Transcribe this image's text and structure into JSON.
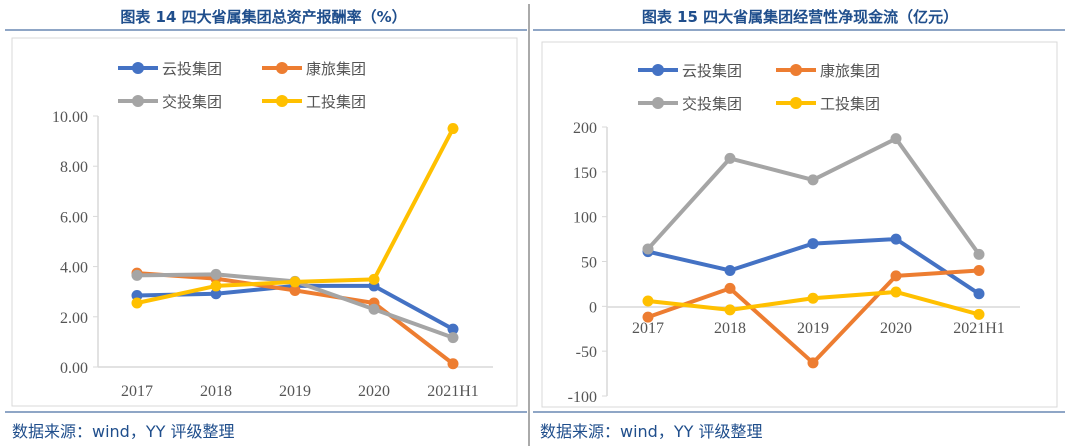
{
  "colors": {
    "云投集团": "#4472C4",
    "康旅集团": "#ED7D31",
    "交投集团": "#A5A5A5",
    "工投集团": "#FFC000",
    "title": "#1F4E8C"
  },
  "left": {
    "title": "图表 14  四大省属集团总资产报酬率（%）",
    "source": "数据来源：wind，YY 评级整理"
  },
  "right": {
    "title": "图表 15  四大省属集团经营性净现金流（亿元）",
    "source": "数据来源：wind，YY 评级整理"
  },
  "chart_data": [
    {
      "type": "line",
      "title": "图表 14  四大省属集团总资产报酬率（%）",
      "categories": [
        "2017",
        "2018",
        "2019",
        "2020",
        "2021H1"
      ],
      "ylim": [
        0,
        10
      ],
      "yticks": [
        "0.00",
        "2.00",
        "4.00",
        "6.00",
        "8.00",
        "10.00"
      ],
      "legend": "top",
      "grid": false,
      "series": [
        {
          "name": "云投集团",
          "values": [
            2.85,
            2.92,
            3.23,
            3.23,
            1.51
          ]
        },
        {
          "name": "康旅集团",
          "values": [
            3.74,
            3.52,
            3.05,
            2.55,
            0.13
          ]
        },
        {
          "name": "交投集团",
          "values": [
            3.65,
            3.69,
            3.41,
            2.3,
            1.17
          ]
        },
        {
          "name": "工投集团",
          "values": [
            2.55,
            3.23,
            3.39,
            3.49,
            9.5
          ]
        }
      ]
    },
    {
      "type": "line",
      "title": "图表 15  四大省属集团经营性净现金流（亿元）",
      "categories": [
        "2017",
        "2018",
        "2019",
        "2020",
        "2021H1"
      ],
      "ylim": [
        -100,
        200
      ],
      "yticks": [
        "-100",
        "-50",
        "0",
        "50",
        "100",
        "150",
        "200"
      ],
      "legend": "top",
      "grid": false,
      "series": [
        {
          "name": "云投集团",
          "values": [
            61,
            40,
            70,
            75,
            14
          ]
        },
        {
          "name": "康旅集团",
          "values": [
            -12,
            20,
            -63,
            34,
            40
          ]
        },
        {
          "name": "交投集团",
          "values": [
            64,
            165,
            141,
            187,
            58
          ]
        },
        {
          "name": "工投集团",
          "values": [
            6,
            -4,
            9,
            16,
            -9
          ]
        }
      ]
    }
  ]
}
